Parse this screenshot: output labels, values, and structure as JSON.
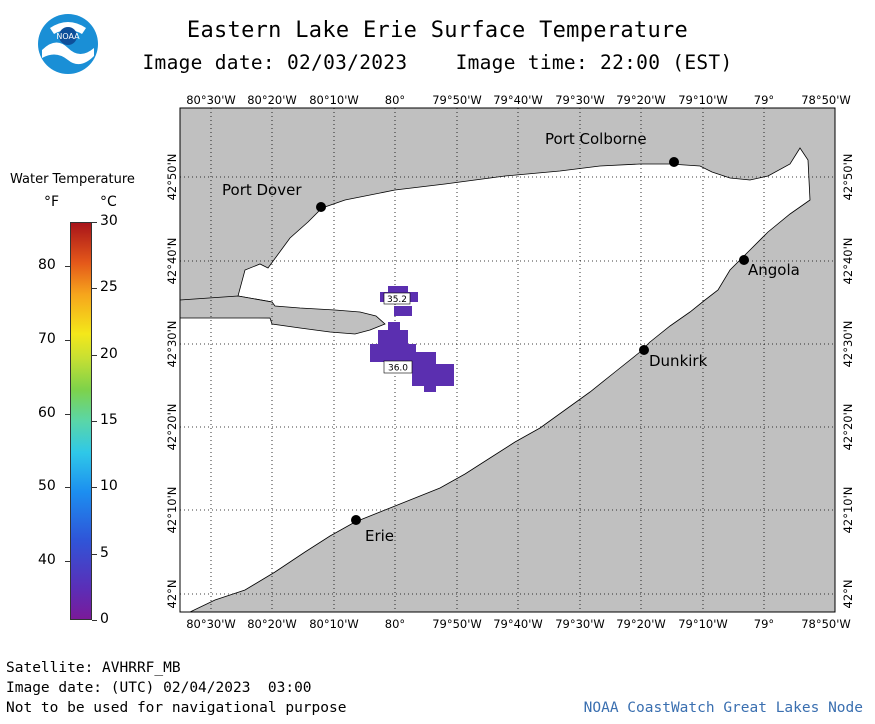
{
  "header": {
    "title": "Eastern Lake Erie Surface Temperature",
    "image_date": "Image date: 02/03/2023",
    "image_time": "Image time: 22:00 (EST)"
  },
  "logo_text": "NOAA",
  "legend": {
    "title": "Water Temperature",
    "unit_f": "°F",
    "unit_c": "°C",
    "f_ticks": [
      {
        "value": 80,
        "label": "80"
      },
      {
        "value": 70,
        "label": "70"
      },
      {
        "value": 60,
        "label": "60"
      },
      {
        "value": 50,
        "label": "50"
      },
      {
        "value": 40,
        "label": "40"
      }
    ],
    "c_ticks": [
      {
        "value": 30,
        "label": "30"
      },
      {
        "value": 25,
        "label": "25"
      },
      {
        "value": 20,
        "label": "20"
      },
      {
        "value": 15,
        "label": "15"
      },
      {
        "value": 10,
        "label": "10"
      },
      {
        "value": 5,
        "label": "5"
      },
      {
        "value": 0,
        "label": "0"
      }
    ]
  },
  "map": {
    "lon_labels": [
      "80°30'W",
      "80°20'W",
      "80°10'W",
      "80°",
      "79°50'W",
      "79°40'W",
      "79°30'W",
      "79°20'W",
      "79°10'W",
      "79°",
      "78°50'W"
    ],
    "lat_labels": [
      "42°N",
      "42°10'N",
      "42°20'N",
      "42°30'N",
      "42°40'N",
      "42°50'N"
    ],
    "colors": {
      "land": "#c0c0c0",
      "water": "#ffffff",
      "cold_water": "#5b2fb0"
    },
    "cities": [
      {
        "name": "Port Colborne",
        "lon": -79.25,
        "lat": 42.88
      },
      {
        "name": "Port Dover",
        "lon": -80.2,
        "lat": 42.78
      },
      {
        "name": "Angola",
        "lon": -79.03,
        "lat": 42.64
      },
      {
        "name": "Dunkirk",
        "lon": -79.33,
        "lat": 42.48
      },
      {
        "name": "Erie",
        "lon": -80.08,
        "lat": 42.13
      }
    ],
    "temperature_labels": [
      "35.2",
      "36.0"
    ]
  },
  "footer": {
    "satellite": "Satellite: AVHRRF_MB",
    "utc_date": "Image date: (UTC) 02/04/2023  03:00",
    "disclaimer": "Not to be used for navigational purpose",
    "credit": "NOAA CoastWatch Great Lakes Node"
  }
}
